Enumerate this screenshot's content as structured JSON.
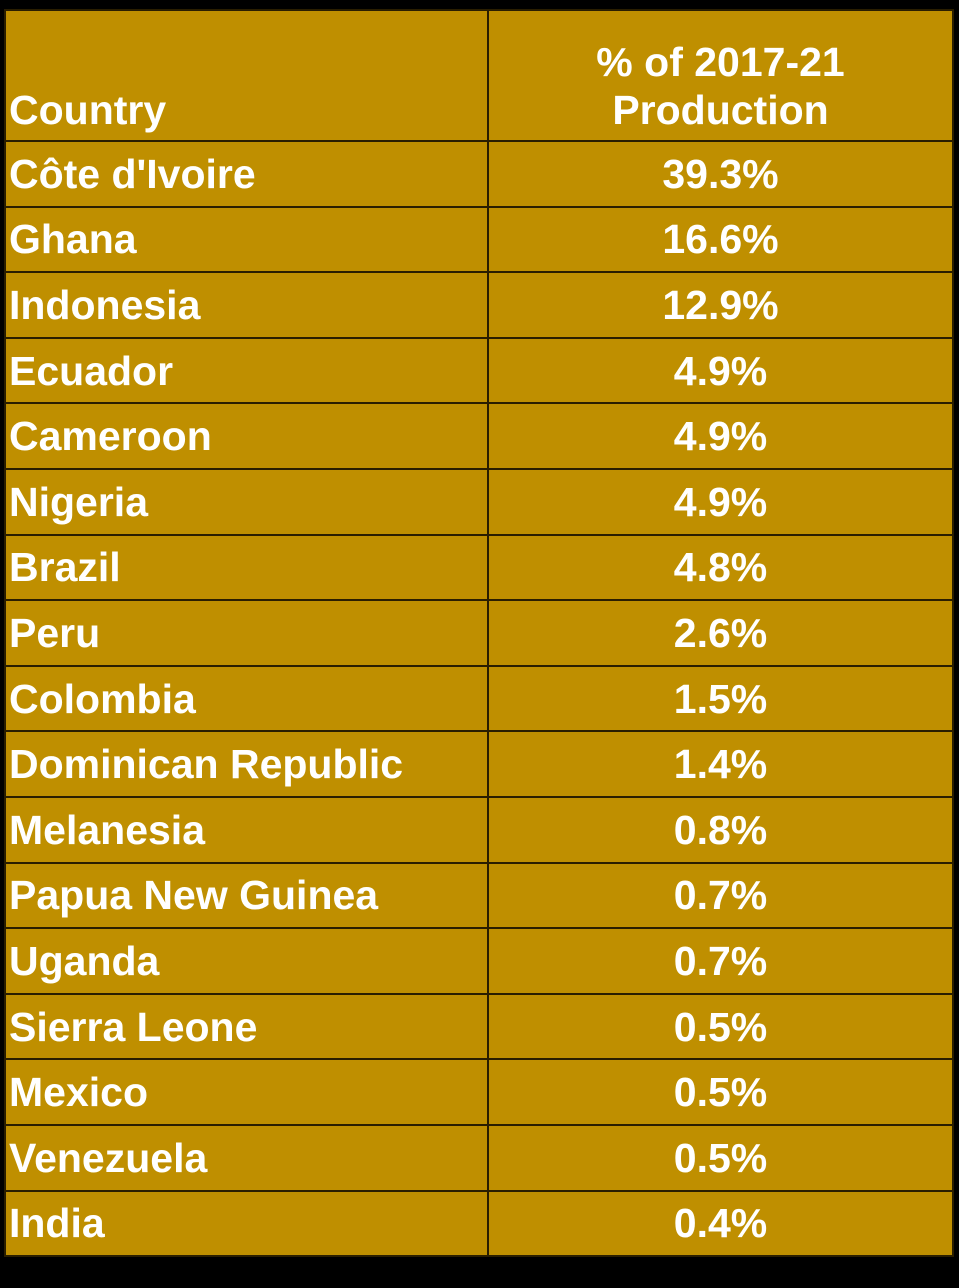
{
  "table": {
    "headers": {
      "country": "Country",
      "pct_line1": "% of 2017-21",
      "pct_line2": "Production"
    },
    "rows": [
      {
        "country": "Côte d'Ivoire",
        "pct": "39.3%"
      },
      {
        "country": "Ghana",
        "pct": "16.6%"
      },
      {
        "country": "Indonesia",
        "pct": "12.9%"
      },
      {
        "country": "Ecuador",
        "pct": "4.9%"
      },
      {
        "country": "Cameroon",
        "pct": "4.9%"
      },
      {
        "country": "Nigeria",
        "pct": "4.9%"
      },
      {
        "country": "Brazil",
        "pct": "4.8%"
      },
      {
        "country": "Peru",
        "pct": "2.6%"
      },
      {
        "country": "Colombia",
        "pct": "1.5%"
      },
      {
        "country": "Dominican Republic",
        "pct": "1.4%"
      },
      {
        "country": "Melanesia",
        "pct": "0.8%"
      },
      {
        "country": "Papua New Guinea",
        "pct": "0.7%"
      },
      {
        "country": "Uganda",
        "pct": "0.7%"
      },
      {
        "country": "Sierra Leone",
        "pct": "0.5%"
      },
      {
        "country": "Mexico",
        "pct": "0.5%"
      },
      {
        "country": "Venezuela",
        "pct": "0.5%"
      },
      {
        "country": "India",
        "pct": "0.4%"
      }
    ]
  },
  "colors": {
    "cell_background": "#bf8f00",
    "text": "#ffffff",
    "border": "#2a1e00",
    "page_background": "#000000"
  }
}
